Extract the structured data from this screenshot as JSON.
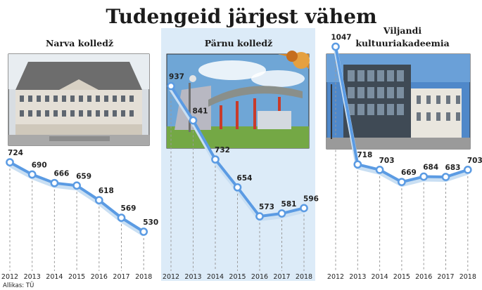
{
  "title": "Tudengeid järjest vähem",
  "source": "Allikas: TÜ",
  "colors": {
    "line": "#5b9be3",
    "marker_fill": "#ffffff",
    "shadow": "#c9dff3",
    "highlight_panel": "#dcebf8",
    "dashed_grid": "#9a9a9a",
    "photo_frame": "#2e2e2e"
  },
  "chart_data": [
    {
      "type": "line",
      "title": "Narva kolledž",
      "x": [
        2012,
        2013,
        2014,
        2015,
        2016,
        2017,
        2018
      ],
      "values": [
        724,
        690,
        666,
        659,
        618,
        569,
        530
      ],
      "data_labels": [
        "724",
        "690",
        "666",
        "659",
        "618",
        "569",
        "530"
      ],
      "highlighted": false
    },
    {
      "type": "line",
      "title": "Pärnu kolledž",
      "x": [
        2012,
        2013,
        2014,
        2015,
        2016,
        2017,
        2018
      ],
      "values": [
        937,
        841,
        732,
        654,
        573,
        581,
        596
      ],
      "data_labels": [
        "937",
        "841",
        "732",
        "654",
        "573",
        "581",
        "596"
      ],
      "highlighted": true
    },
    {
      "type": "line",
      "title": "Viljandi kultuuriakadeemia",
      "title_lines": [
        "Viljandi",
        "kultuuriakadeemia"
      ],
      "x": [
        2012,
        2013,
        2014,
        2015,
        2016,
        2017,
        2018
      ],
      "values": [
        1047,
        718,
        703,
        669,
        684,
        683,
        703
      ],
      "data_labels": [
        "1047",
        "718",
        "703",
        "669",
        "684",
        "683",
        "703"
      ],
      "highlighted": false
    }
  ]
}
